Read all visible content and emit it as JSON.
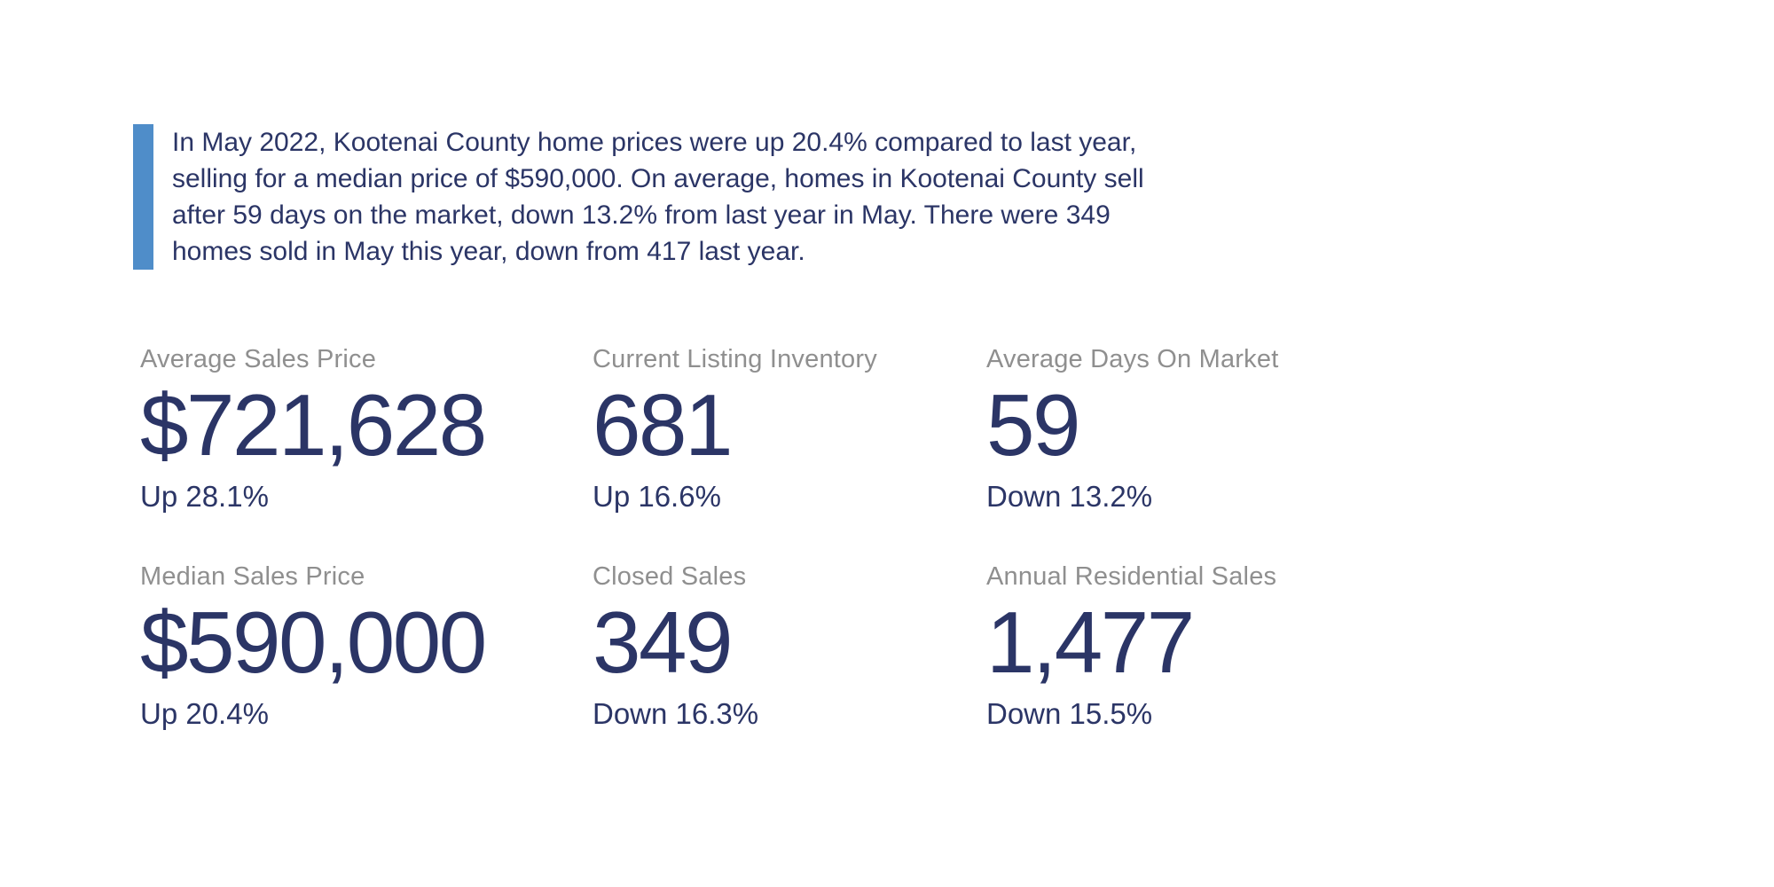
{
  "summary": {
    "lines": [
      "In May 2022, Kootenai County home prices were up 20.4% compared to last year,",
      "selling for a median price of $590,000. On average, homes in Kootenai County sell",
      "after 59 days on the market, down 13.2% from last year in May. There were 349",
      "homes sold in May this year, down from 417 last year."
    ]
  },
  "stats": [
    {
      "label": "Average Sales Price",
      "value": "$721,628",
      "change": "Up 28.1%"
    },
    {
      "label": "Current Listing Inventory",
      "value": "681",
      "change": "Up 16.6%"
    },
    {
      "label": "Average Days On Market",
      "value": "59",
      "change": "Down 13.2%"
    },
    {
      "label": "Median Sales Price",
      "value": "$590,000",
      "change": "Up 20.4%"
    },
    {
      "label": "Closed Sales",
      "value": "349",
      "change": "Down 16.3%"
    },
    {
      "label": "Annual Residential Sales",
      "value": "1,477",
      "change": "Down 15.5%"
    }
  ],
  "colors": {
    "accent": "#4f8dc9",
    "navy": "#2b3566",
    "label_gray": "#8f8f8f",
    "background": "#ffffff"
  }
}
